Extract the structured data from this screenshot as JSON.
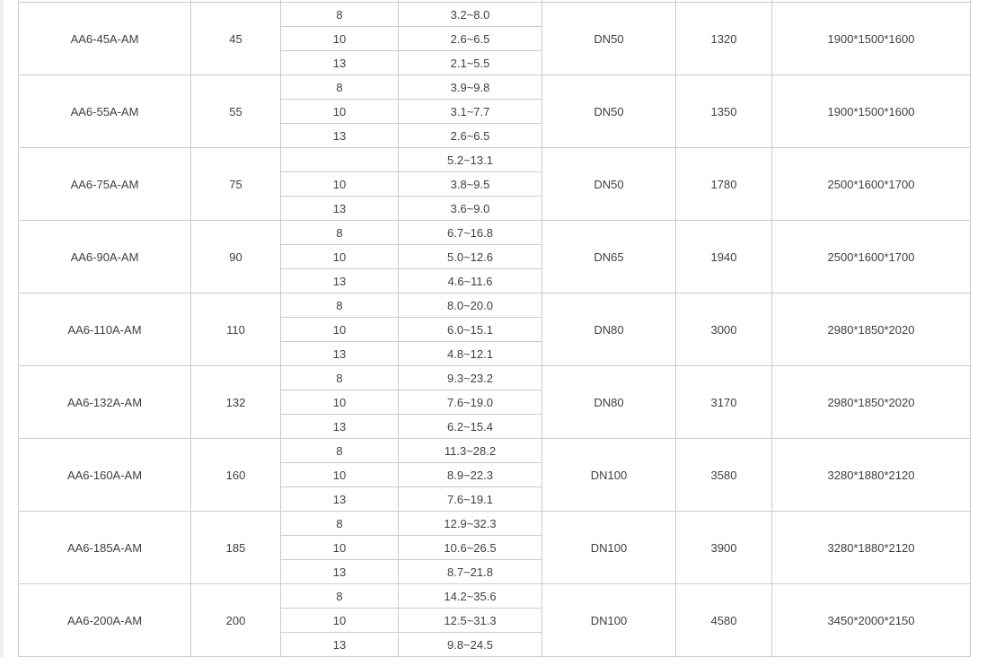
{
  "page": {
    "background": "#ffffff",
    "left_strip_color": "#eef0f8",
    "border_color": "#cccccc",
    "text_color": "#404040"
  },
  "table": {
    "rows": [
      {
        "model": "AA6-45A-AM",
        "power": "45",
        "variants": [
          {
            "pressure": "8",
            "flow": "3.2~8.0"
          },
          {
            "pressure": "10",
            "flow": "2.6~6.5"
          },
          {
            "pressure": "13",
            "flow": "2.1~5.5"
          }
        ],
        "outlet": "DN50",
        "weight": "1320",
        "dimensions": "1900*1500*1600"
      },
      {
        "model": "AA6-55A-AM",
        "power": "55",
        "variants": [
          {
            "pressure": "8",
            "flow": "3.9~9.8"
          },
          {
            "pressure": "10",
            "flow": "3.1~7.7"
          },
          {
            "pressure": "13",
            "flow": "2.6~6.5"
          }
        ],
        "outlet": "DN50",
        "weight": "1350",
        "dimensions": "1900*1500*1600"
      },
      {
        "model": "AA6-75A-AM",
        "power": "75",
        "variants": [
          {
            "pressure": "",
            "flow": "5.2~13.1"
          },
          {
            "pressure": "10",
            "flow": "3.8~9.5"
          },
          {
            "pressure": "13",
            "flow": "3.6~9.0"
          }
        ],
        "outlet": "DN50",
        "weight": "1780",
        "dimensions": "2500*1600*1700"
      },
      {
        "model": "AA6-90A-AM",
        "power": "90",
        "variants": [
          {
            "pressure": "8",
            "flow": "6.7~16.8"
          },
          {
            "pressure": "10",
            "flow": "5.0~12.6"
          },
          {
            "pressure": "13",
            "flow": "4.6~11.6"
          }
        ],
        "outlet": "DN65",
        "weight": "1940",
        "dimensions": "2500*1600*1700"
      },
      {
        "model": "AA6-110A-AM",
        "power": "110",
        "variants": [
          {
            "pressure": "8",
            "flow": "8.0~20.0"
          },
          {
            "pressure": "10",
            "flow": "6.0~15.1"
          },
          {
            "pressure": "13",
            "flow": "4.8~12.1"
          }
        ],
        "outlet": "DN80",
        "weight": "3000",
        "dimensions": "2980*1850*2020"
      },
      {
        "model": "AA6-132A-AM",
        "power": "132",
        "variants": [
          {
            "pressure": "8",
            "flow": "9.3~23.2"
          },
          {
            "pressure": "10",
            "flow": "7.6~19.0"
          },
          {
            "pressure": "13",
            "flow": "6.2~15.4"
          }
        ],
        "outlet": "DN80",
        "weight": "3170",
        "dimensions": "2980*1850*2020"
      },
      {
        "model": "AA6-160A-AM",
        "power": "160",
        "variants": [
          {
            "pressure": "8",
            "flow": "11.3~28.2"
          },
          {
            "pressure": "10",
            "flow": "8.9~22.3"
          },
          {
            "pressure": "13",
            "flow": "7.6~19.1"
          }
        ],
        "outlet": "DN100",
        "weight": "3580",
        "dimensions": "3280*1880*2120"
      },
      {
        "model": "AA6-185A-AM",
        "power": "185",
        "variants": [
          {
            "pressure": "8",
            "flow": "12.9~32.3"
          },
          {
            "pressure": "10",
            "flow": "10.6~26.5"
          },
          {
            "pressure": "13",
            "flow": "8.7~21.8"
          }
        ],
        "outlet": "DN100",
        "weight": "3900",
        "dimensions": "3280*1880*2120"
      },
      {
        "model": "AA6-200A-AM",
        "power": "200",
        "variants": [
          {
            "pressure": "8",
            "flow": "14.2~35.6"
          },
          {
            "pressure": "10",
            "flow": "12.5~31.3"
          },
          {
            "pressure": "13",
            "flow": "9.8~24.5"
          }
        ],
        "outlet": "DN100",
        "weight": "4580",
        "dimensions": "3450*2000*2150"
      }
    ]
  }
}
